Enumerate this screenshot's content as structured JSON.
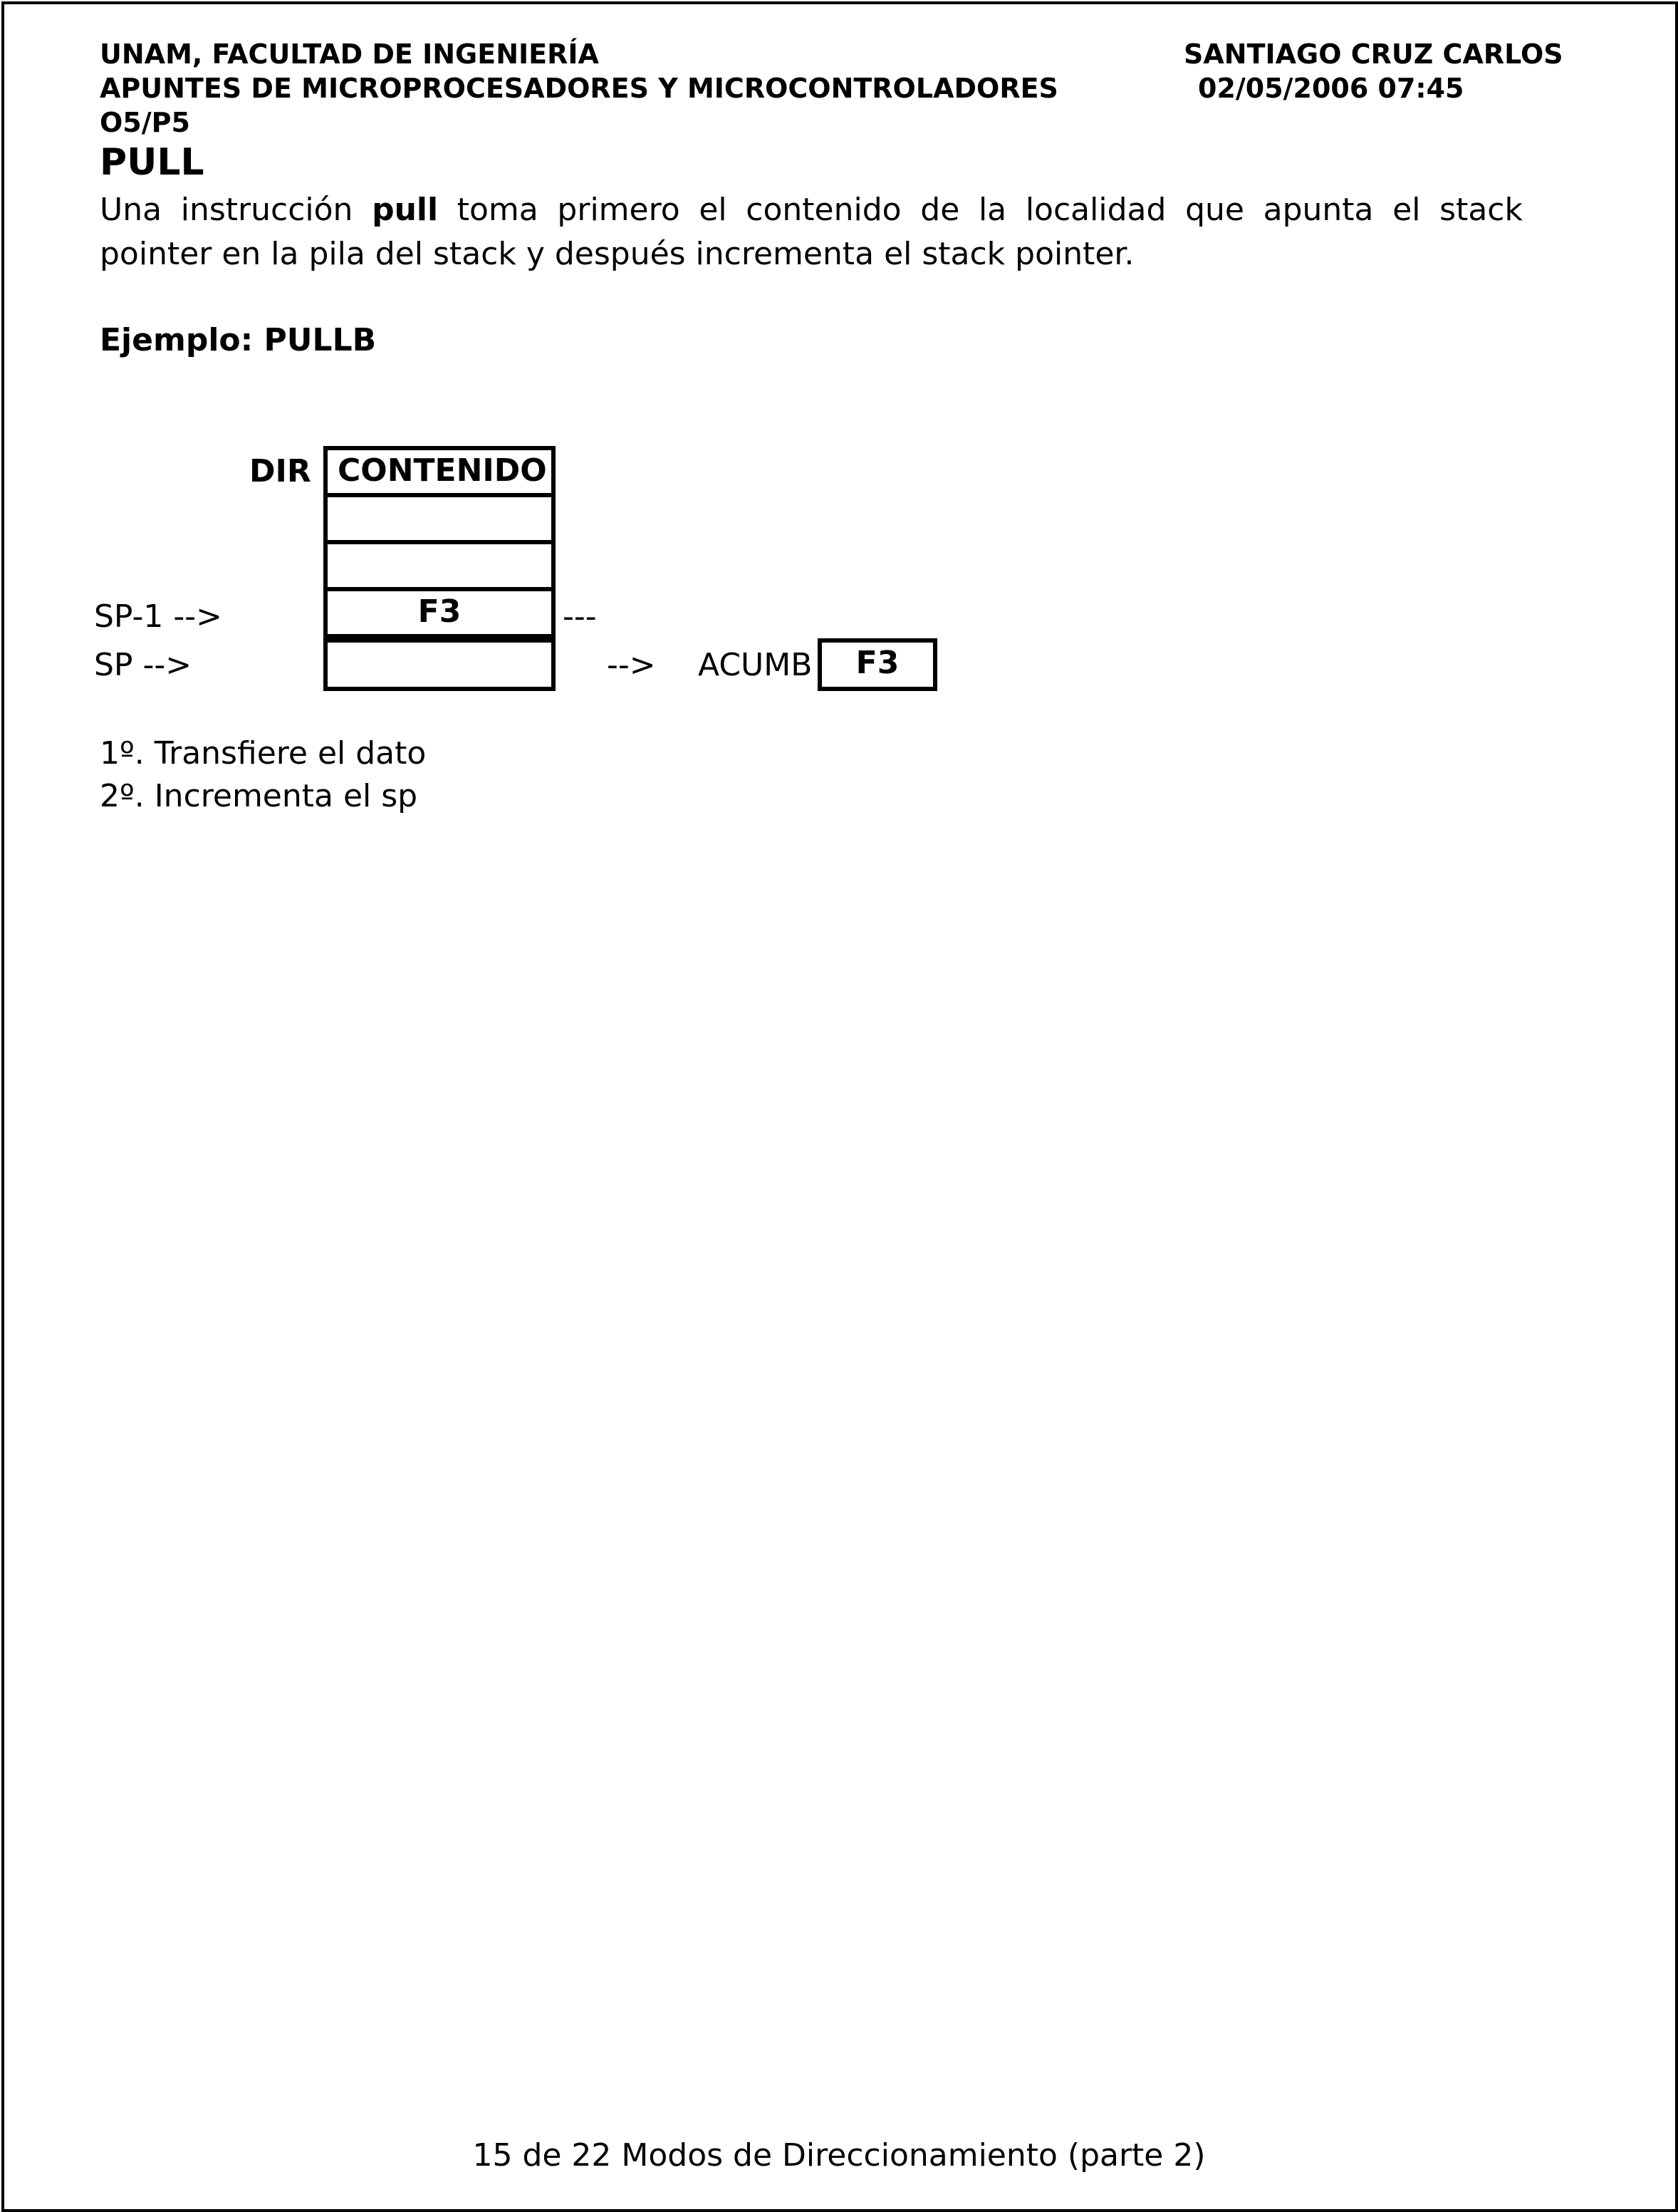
{
  "header": {
    "institution": "UNAM, FACULTAD DE INGENIERÍA",
    "course": "APUNTES DE MICROPROCESADORES Y MICROCONTROLADORES",
    "code": "O5/P5",
    "author": "SANTIAGO CRUZ CARLOS",
    "datetime": "02/05/2006 07:45"
  },
  "section": {
    "title": "PULL",
    "para_part1": "Una instrucción ",
    "para_bold": "pull",
    "para_part2": " toma primero el contenido de la localidad que apunta el stack pointer en la pila del stack y después incrementa el stack pointer.",
    "example": "Ejemplo: PULLB"
  },
  "diagram": {
    "dir_label": "DIR",
    "header_cell": "CONTENIDO",
    "row3_value": "F3",
    "sp_minus1_label": "SP-1 -->",
    "sp_label": "SP -->",
    "dashes": "---",
    "arrow": "-->",
    "acc_label": "ACUMB",
    "acc_value": "F3"
  },
  "steps": [
    "1º. Transfiere el dato",
    "2º. Incrementa el sp"
  ],
  "footer": "15 de 22 Modos de Direccionamiento (parte 2)"
}
